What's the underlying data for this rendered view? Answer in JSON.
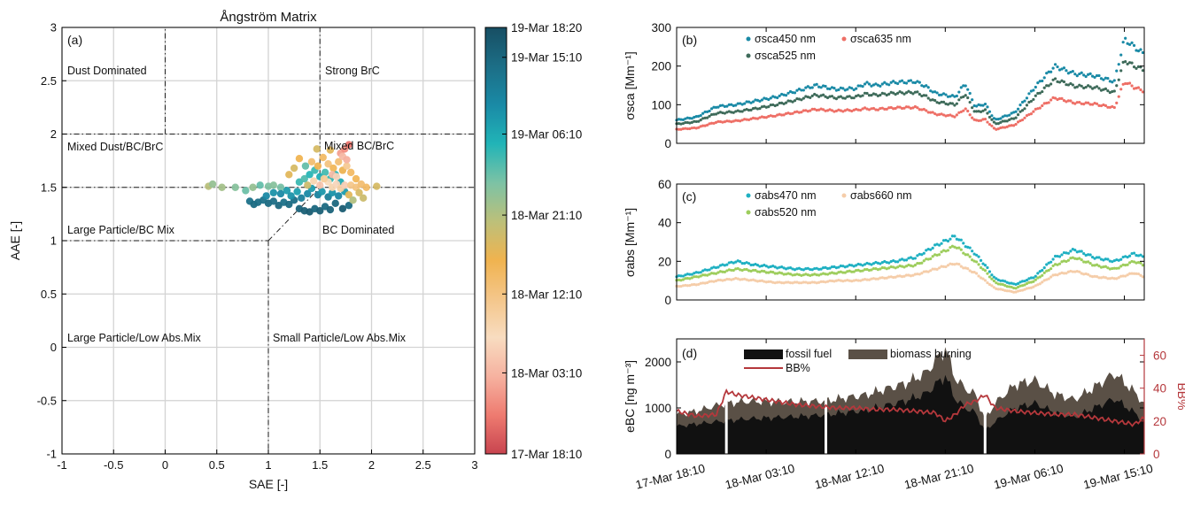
{
  "colors": {
    "sca450": "#1a8aa6",
    "sca525": "#3e6b5a",
    "sca635": "#ee6f66",
    "abs470": "#1fb0c2",
    "abs520": "#9dcd5c",
    "abs660": "#f5cda9",
    "fossil": "#111111",
    "biomass": "#5a5046",
    "bb_line": "#b5383c",
    "colormap": [
      "#c8444f",
      "#ee7b70",
      "#f6b2a0",
      "#f8dcc0",
      "#f4c68a",
      "#f0b34f",
      "#bcc07a",
      "#7cc2a5",
      "#21b4b7",
      "#1a8aa6",
      "#1c6e86",
      "#174e63"
    ]
  },
  "chart_data": [
    {
      "type": "scatter",
      "panel": "(a)",
      "title": "Ångström Matrix",
      "xlabel": "SAE [-]",
      "ylabel": "AAE [-]",
      "xlim": [
        -1,
        3
      ],
      "ylim": [
        -1,
        3
      ],
      "xticks": [
        "-1",
        "-0.5",
        "0",
        "0.5",
        "1",
        "1.5",
        "2",
        "2.5",
        "3"
      ],
      "yticks": [
        "-1",
        "-0.5",
        "0",
        "0.5",
        "1",
        "1.5",
        "2",
        "2.5",
        "3"
      ],
      "grid": true,
      "region_labels": [
        "Dust Dominated",
        "Strong BrC",
        "Mixed Dust/BC/BrC",
        "Mixed BC/BrC",
        "Large Particle/BC Mix",
        "BC Dominated",
        "Large Particle/Low Abs.Mix",
        "Small Particle/Low Abs.Mix"
      ],
      "colorbar_labels": [
        "19-Mar 18:20",
        "19-Mar 15:10",
        "19-Mar 06:10",
        "18-Mar 21:10",
        "18-Mar 12:10",
        "18-Mar 03:10",
        "17-Mar 18:10"
      ],
      "colorbar_label_fractions": [
        1.0,
        0.93,
        0.75,
        0.56,
        0.375,
        0.19,
        0.0
      ],
      "points": [
        [
          0.42,
          1.51,
          0.55
        ],
        [
          0.46,
          1.53,
          0.6
        ],
        [
          0.55,
          1.5,
          0.58
        ],
        [
          0.68,
          1.5,
          0.62
        ],
        [
          0.78,
          1.47,
          0.65
        ],
        [
          0.85,
          1.5,
          0.6
        ],
        [
          0.92,
          1.52,
          0.66
        ],
        [
          1.0,
          1.51,
          0.63
        ],
        [
          1.05,
          1.52,
          0.62
        ],
        [
          1.12,
          1.5,
          0.64
        ],
        [
          0.82,
          1.37,
          0.9
        ],
        [
          0.86,
          1.34,
          0.92
        ],
        [
          0.9,
          1.36,
          0.91
        ],
        [
          0.95,
          1.38,
          0.9
        ],
        [
          1.0,
          1.35,
          0.92
        ],
        [
          1.05,
          1.37,
          0.91
        ],
        [
          1.1,
          1.33,
          0.93
        ],
        [
          1.15,
          1.36,
          0.9
        ],
        [
          1.2,
          1.34,
          0.92
        ],
        [
          1.25,
          1.38,
          0.91
        ],
        [
          1.3,
          1.3,
          0.94
        ],
        [
          1.35,
          1.28,
          0.95
        ],
        [
          1.4,
          1.27,
          0.96
        ],
        [
          1.45,
          1.3,
          0.93
        ],
        [
          1.5,
          1.28,
          0.95
        ],
        [
          1.55,
          1.32,
          0.92
        ],
        [
          1.6,
          1.29,
          0.94
        ],
        [
          1.65,
          1.35,
          0.93
        ],
        [
          1.72,
          1.3,
          0.96
        ],
        [
          1.78,
          1.33,
          0.92
        ],
        [
          0.98,
          1.42,
          0.82
        ],
        [
          1.05,
          1.45,
          0.8
        ],
        [
          1.12,
          1.44,
          0.82
        ],
        [
          1.18,
          1.47,
          0.78
        ],
        [
          1.22,
          1.42,
          0.8
        ],
        [
          1.28,
          1.46,
          0.77
        ],
        [
          1.32,
          1.4,
          0.85
        ],
        [
          1.38,
          1.44,
          0.82
        ],
        [
          1.42,
          1.49,
          0.78
        ],
        [
          1.48,
          1.43,
          0.84
        ],
        [
          1.52,
          1.46,
          0.79
        ],
        [
          1.58,
          1.41,
          0.86
        ],
        [
          1.62,
          1.45,
          0.8
        ],
        [
          1.68,
          1.42,
          0.83
        ],
        [
          1.74,
          1.46,
          0.78
        ],
        [
          1.3,
          1.55,
          0.7
        ],
        [
          1.35,
          1.58,
          0.68
        ],
        [
          1.4,
          1.62,
          0.72
        ],
        [
          1.45,
          1.66,
          0.7
        ],
        [
          1.5,
          1.6,
          0.74
        ],
        [
          1.55,
          1.64,
          0.69
        ],
        [
          1.6,
          1.58,
          0.71
        ],
        [
          1.65,
          1.62,
          0.73
        ],
        [
          1.7,
          1.55,
          0.75
        ],
        [
          1.36,
          1.7,
          0.66
        ],
        [
          1.42,
          1.74,
          0.4
        ],
        [
          1.48,
          1.7,
          0.45
        ],
        [
          1.53,
          1.78,
          0.42
        ],
        [
          1.58,
          1.72,
          0.38
        ],
        [
          1.63,
          1.68,
          0.44
        ],
        [
          1.68,
          1.74,
          0.4
        ],
        [
          1.72,
          1.66,
          0.46
        ],
        [
          1.76,
          1.7,
          0.35
        ],
        [
          1.8,
          1.64,
          0.42
        ],
        [
          1.85,
          1.58,
          0.44
        ],
        [
          1.7,
          1.82,
          0.15
        ],
        [
          1.74,
          1.86,
          0.12
        ],
        [
          1.78,
          1.9,
          0.08
        ],
        [
          1.72,
          1.79,
          0.2
        ],
        [
          1.76,
          1.76,
          0.18
        ],
        [
          1.58,
          1.55,
          0.28
        ],
        [
          1.62,
          1.5,
          0.3
        ],
        [
          1.66,
          1.53,
          0.26
        ],
        [
          1.7,
          1.49,
          0.32
        ],
        [
          1.74,
          1.52,
          0.24
        ],
        [
          1.8,
          1.52,
          0.36
        ],
        [
          1.85,
          1.5,
          0.38
        ],
        [
          1.9,
          1.53,
          0.4
        ],
        [
          1.95,
          1.5,
          0.42
        ],
        [
          2.05,
          1.51,
          0.5
        ],
        [
          1.88,
          1.45,
          0.5
        ],
        [
          1.92,
          1.4,
          0.52
        ],
        [
          1.78,
          1.43,
          0.48
        ],
        [
          1.82,
          1.38,
          0.56
        ],
        [
          1.6,
          1.85,
          0.48
        ],
        [
          1.47,
          1.86,
          0.5
        ],
        [
          1.3,
          1.77,
          0.45
        ],
        [
          1.25,
          1.68,
          0.5
        ],
        [
          1.2,
          1.62,
          0.48
        ],
        [
          1.38,
          1.52,
          0.52
        ],
        [
          1.44,
          1.56,
          0.3
        ],
        [
          1.5,
          1.52,
          0.22
        ],
        [
          1.54,
          1.58,
          0.34
        ],
        [
          1.62,
          1.62,
          0.2
        ],
        [
          1.66,
          1.6,
          0.25
        ]
      ]
    },
    {
      "type": "line",
      "panel": "(b)",
      "ylabel": "σsca [Mm⁻¹]",
      "ylim": [
        0,
        300
      ],
      "yticks": [
        "0",
        "100",
        "200",
        "300"
      ],
      "x_categories": [
        "17-Mar 18:10",
        "18-Mar 03:10",
        "18-Mar 12:10",
        "18-Mar 21:10",
        "19-Mar 06:10",
        "19-Mar 15:10"
      ],
      "x_unit": "hours after 17-Mar 18:10",
      "xlim": [
        0,
        47
      ],
      "legend": [
        "σsca450 nm",
        "σsca525 nm",
        "σsca635 nm"
      ],
      "series": [
        {
          "name": "σsca450 nm",
          "x": [
            0,
            2,
            4,
            6,
            8,
            10,
            12,
            14,
            16,
            18,
            19,
            20,
            22,
            24,
            25,
            26,
            28,
            29,
            30,
            31,
            32,
            34,
            36,
            38,
            40,
            42,
            44,
            45,
            46,
            47
          ],
          "values": [
            60,
            68,
            95,
            100,
            110,
            120,
            135,
            150,
            140,
            142,
            155,
            150,
            158,
            160,
            148,
            130,
            120,
            155,
            95,
            102,
            60,
            80,
            145,
            200,
            180,
            175,
            160,
            270,
            250,
            230
          ]
        },
        {
          "name": "σsca525 nm",
          "x": [
            0,
            2,
            4,
            6,
            8,
            10,
            12,
            14,
            16,
            18,
            19,
            20,
            22,
            24,
            25,
            26,
            28,
            29,
            30,
            31,
            32,
            34,
            36,
            38,
            40,
            42,
            44,
            45,
            46,
            47
          ],
          "values": [
            50,
            56,
            78,
            82,
            90,
            100,
            112,
            125,
            118,
            120,
            128,
            125,
            130,
            132,
            122,
            108,
            100,
            128,
            80,
            86,
            50,
            65,
            120,
            165,
            148,
            145,
            132,
            215,
            200,
            190
          ]
        },
        {
          "name": "σsca635 nm",
          "x": [
            0,
            2,
            4,
            6,
            8,
            10,
            12,
            14,
            16,
            18,
            19,
            20,
            22,
            24,
            25,
            26,
            28,
            29,
            30,
            31,
            32,
            34,
            36,
            38,
            40,
            42,
            44,
            45,
            46,
            47
          ],
          "values": [
            36,
            40,
            55,
            58,
            65,
            72,
            80,
            88,
            84,
            86,
            90,
            88,
            92,
            93,
            85,
            76,
            70,
            90,
            58,
            62,
            36,
            48,
            85,
            118,
            105,
            102,
            92,
            160,
            145,
            135
          ]
        }
      ]
    },
    {
      "type": "line",
      "panel": "(c)",
      "ylabel": "σabs [Mm⁻¹]",
      "ylim": [
        0,
        60
      ],
      "yticks": [
        "0",
        "20",
        "40",
        "60"
      ],
      "legend": [
        "σabs470 nm",
        "σabs520 nm",
        "σabs660 nm"
      ],
      "series": [
        {
          "name": "σabs470 nm",
          "x": [
            0,
            2,
            4,
            6,
            8,
            10,
            12,
            14,
            16,
            18,
            20,
            22,
            24,
            26,
            28,
            30,
            31,
            32,
            34,
            36,
            38,
            40,
            42,
            44,
            46,
            47
          ],
          "values": [
            12,
            14,
            17,
            20,
            18,
            17,
            16,
            16,
            17,
            18,
            19,
            20,
            22,
            28,
            33,
            24,
            18,
            11,
            8,
            12,
            22,
            26,
            22,
            20,
            24,
            22
          ]
        },
        {
          "name": "σabs520 nm",
          "x": [
            0,
            2,
            4,
            6,
            8,
            10,
            12,
            14,
            16,
            18,
            20,
            22,
            24,
            26,
            28,
            30,
            31,
            32,
            34,
            36,
            38,
            40,
            42,
            44,
            46,
            47
          ],
          "values": [
            10,
            12,
            14,
            16,
            15,
            14,
            13,
            13,
            14,
            15,
            16,
            17,
            18,
            23,
            28,
            20,
            15,
            9,
            6,
            10,
            18,
            22,
            18,
            16,
            20,
            18
          ]
        },
        {
          "name": "σabs660 nm",
          "x": [
            0,
            2,
            4,
            6,
            8,
            10,
            12,
            14,
            16,
            18,
            20,
            22,
            24,
            26,
            28,
            30,
            31,
            32,
            34,
            36,
            38,
            40,
            42,
            44,
            46,
            47
          ],
          "values": [
            7,
            8,
            10,
            11,
            10,
            9,
            9,
            9,
            10,
            10,
            11,
            12,
            13,
            16,
            19,
            14,
            10,
            6,
            4,
            7,
            13,
            15,
            12,
            11,
            14,
            12
          ]
        }
      ]
    },
    {
      "type": "area",
      "panel": "(d)",
      "ylabel": "eBC [ng m⁻³]",
      "y2label": "BB%",
      "ylim": [
        0,
        2500
      ],
      "yticks": [
        "0",
        "1000",
        "2000"
      ],
      "y2lim": [
        0,
        70
      ],
      "y2ticks": [
        "0",
        "20",
        "40",
        "60"
      ],
      "xticks": [
        "17-Mar 18:10",
        "18-Mar 03:10",
        "18-Mar 12:10",
        "18-Mar 21:10",
        "19-Mar 06:10",
        "19-Mar 15:10"
      ],
      "legend": [
        "fossil fuel",
        "biomass burning",
        "BB%"
      ],
      "series": [
        {
          "name": "fossil fuel",
          "x": [
            0,
            2,
            4,
            5,
            7,
            9,
            11,
            13,
            15,
            17,
            19,
            21,
            23,
            25,
            27,
            28,
            29,
            30,
            31,
            32,
            34,
            36,
            38,
            40,
            42,
            44,
            46,
            47
          ],
          "values": [
            600,
            650,
            700,
            720,
            760,
            780,
            800,
            820,
            850,
            900,
            950,
            1050,
            1150,
            1300,
            1700,
            1200,
            1000,
            900,
            500,
            700,
            1000,
            1100,
            900,
            800,
            1000,
            1200,
            900,
            700
          ]
        },
        {
          "name": "biomass burning",
          "x": [
            0,
            2,
            4,
            5,
            7,
            9,
            11,
            13,
            15,
            17,
            19,
            21,
            23,
            25,
            27,
            28,
            29,
            30,
            31,
            32,
            34,
            36,
            38,
            40,
            42,
            44,
            46,
            47
          ],
          "values": [
            250,
            280,
            350,
            380,
            380,
            360,
            330,
            320,
            300,
            320,
            330,
            360,
            380,
            450,
            600,
            450,
            420,
            400,
            250,
            400,
            500,
            500,
            400,
            380,
            450,
            550,
            450,
            380
          ]
        },
        {
          "name": "BB%",
          "x": [
            0,
            2,
            4,
            5,
            6,
            8,
            10,
            12,
            14,
            16,
            18,
            20,
            22,
            24,
            26,
            27,
            28,
            29,
            30,
            31,
            32,
            34,
            36,
            38,
            40,
            42,
            44,
            46,
            47
          ],
          "values": [
            26,
            23,
            24,
            38,
            36,
            34,
            32,
            30,
            29,
            28,
            28,
            27,
            27,
            26,
            25,
            20,
            24,
            30,
            32,
            36,
            28,
            26,
            25,
            24,
            24,
            22,
            20,
            18,
            22
          ]
        }
      ]
    }
  ]
}
